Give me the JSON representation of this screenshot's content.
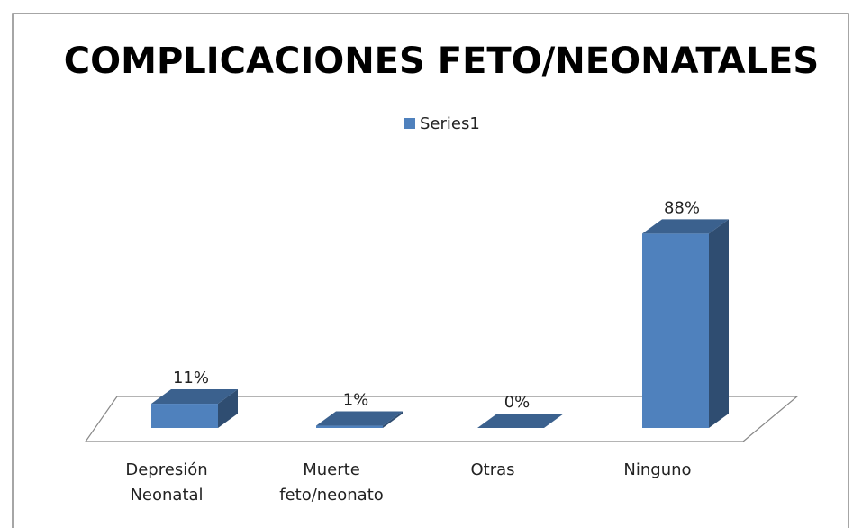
{
  "chart_data": {
    "type": "bar3d",
    "title": "COMPLICACIONES FETO/NEONATALES",
    "categories": [
      "Depresión Neonatal",
      "Muerte feto/neonato",
      "Otras",
      "Ninguno"
    ],
    "series": [
      {
        "name": "Series1",
        "color": "#4f81bd",
        "values": [
          11,
          1,
          0,
          88
        ],
        "value_labels": [
          "11%",
          "1%",
          "0%",
          "88%"
        ]
      }
    ],
    "legend": "top"
  }
}
